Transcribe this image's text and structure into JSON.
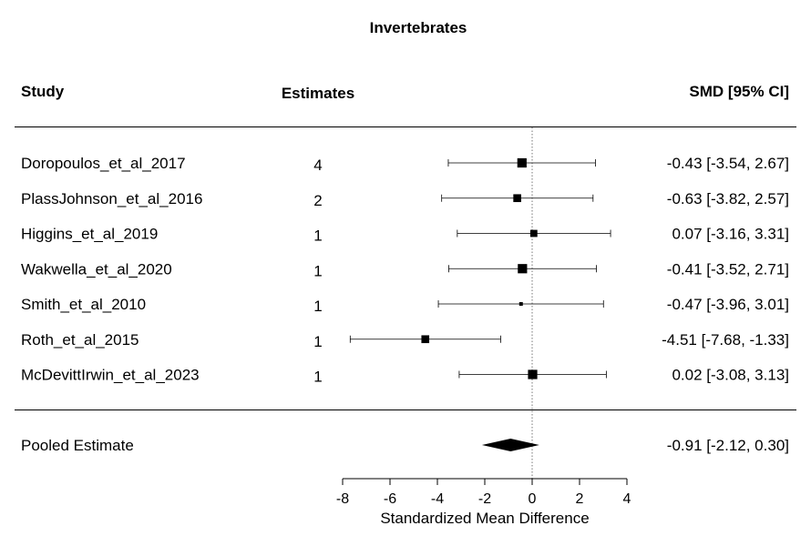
{
  "chart_data": {
    "type": "forest",
    "title": "Invertebrates",
    "columns": {
      "study": "Study",
      "estimates": "Estimates",
      "smd": "SMD [95% CI]"
    },
    "studies": [
      {
        "name": "Doropoulos_et_al_2017",
        "estimates": "4",
        "smd": -0.43,
        "lower": -3.54,
        "upper": 2.67,
        "label": "-0.43 [-3.54,  2.67]",
        "weight": 0.45
      },
      {
        "name": "PlassJohnson_et_al_2016",
        "estimates": "2",
        "smd": -0.63,
        "lower": -3.82,
        "upper": 2.57,
        "label": "-0.63 [-3.82,  2.57]",
        "weight": 0.35
      },
      {
        "name": "Higgins_et_al_2019",
        "estimates": "1",
        "smd": 0.07,
        "lower": -3.16,
        "upper": 3.31,
        "label": "0.07 [-3.16,  3.31]",
        "weight": 0.3
      },
      {
        "name": "Wakwella_et_al_2020",
        "estimates": "1",
        "smd": -0.41,
        "lower": -3.52,
        "upper": 2.71,
        "label": "-0.41 [-3.52,  2.71]",
        "weight": 0.45
      },
      {
        "name": "Smith_et_al_2010",
        "estimates": "1",
        "smd": -0.47,
        "lower": -3.96,
        "upper": 3.01,
        "label": "-0.47 [-3.96,  3.01]",
        "weight": 0.06
      },
      {
        "name": "Roth_et_al_2015",
        "estimates": "1",
        "smd": -4.51,
        "lower": -7.68,
        "upper": -1.33,
        "label": "-4.51 [-7.68, -1.33]",
        "weight": 0.35
      },
      {
        "name": "McDevittIrwin_et_al_2023",
        "estimates": "1",
        "smd": 0.02,
        "lower": -3.08,
        "upper": 3.13,
        "label": "0.02 [-3.08,  3.13]",
        "weight": 0.45
      }
    ],
    "pooled": {
      "name": "Pooled Estimate",
      "smd": -0.91,
      "lower": -2.12,
      "upper": 0.3,
      "label": "-0.91 [-2.12,  0.30]"
    },
    "reference_line": 0,
    "xlim": [
      -8,
      4
    ],
    "xticks": [
      "-8",
      "-6",
      "-4",
      "-2",
      "0",
      "2",
      "4"
    ],
    "xlabel": "Standardized Mean Difference"
  }
}
